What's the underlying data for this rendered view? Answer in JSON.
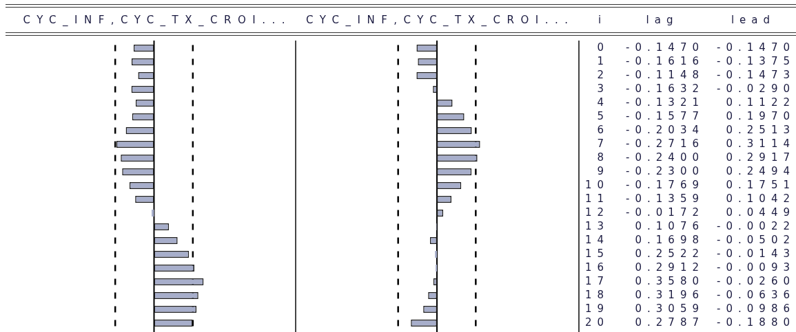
{
  "chart_data": [
    {
      "type": "bar",
      "orientation": "horizontal",
      "title": "CYC_INF,CYC_TX_CROI...",
      "categories": [
        "0",
        "1",
        "2",
        "3",
        "4",
        "5",
        "6",
        "7",
        "8",
        "9",
        "10",
        "11",
        "12",
        "13",
        "14",
        "15",
        "16",
        "17",
        "18",
        "19",
        "20"
      ],
      "values": [
        -0.147,
        -0.1616,
        -0.1148,
        -0.1632,
        -0.1321,
        -0.1577,
        -0.2034,
        -0.2716,
        -0.24,
        -0.23,
        -0.1769,
        -0.1359,
        -0.0172,
        0.1076,
        0.1698,
        0.2522,
        0.2912,
        0.358,
        0.3196,
        0.3059,
        0.2787
      ],
      "value_labels": [
        "-0.1470",
        "-0.1616",
        "-0.1148",
        "-0.1632",
        "-0.1321",
        "-0.1577",
        "-0.2034",
        "-0.2716",
        "-0.2400",
        "-0.2300",
        "-0.1769",
        "-0.1359",
        "-0.0172",
        "0.1076",
        "0.1698",
        "0.2522",
        "0.2912",
        "0.3580",
        "0.3196",
        "0.3059",
        "0.2787"
      ],
      "color": "#a7aecb",
      "ref_lines": [
        {
          "axis": "x",
          "value": -0.28,
          "line_style": "dashed",
          "color": "#000000"
        },
        {
          "axis": "x",
          "value": 0.28,
          "line_style": "dashed",
          "color": "#000000"
        }
      ],
      "annotations": [
        "lag"
      ],
      "tick_labels": false
    },
    {
      "type": "bar",
      "orientation": "horizontal",
      "title": "CYC_INF,CYC_TX_CROI...",
      "ylabel": "i",
      "categories": [
        "0",
        "1",
        "2",
        "3",
        "4",
        "5",
        "6",
        "7",
        "8",
        "9",
        "10",
        "11",
        "12",
        "13",
        "14",
        "15",
        "16",
        "17",
        "18",
        "19",
        "20"
      ],
      "values": [
        -0.147,
        -0.1375,
        -0.1473,
        -0.029,
        0.1122,
        0.197,
        0.2513,
        0.3114,
        0.2917,
        0.2494,
        0.1751,
        0.1042,
        0.0449,
        -0.0022,
        -0.0502,
        -0.0143,
        -0.0093,
        -0.026,
        -0.0636,
        -0.0986,
        -0.188
      ],
      "value_labels": [
        "-0.1470",
        "-0.1375",
        "-0.1473",
        "-0.0290",
        "0.1122",
        "0.1970",
        "0.2513",
        "0.3114",
        "0.2917",
        "0.2494",
        "0.1751",
        "0.1042",
        "0.0449",
        "-0.0022",
        "-0.0502",
        "-0.0143",
        "-0.0093",
        "-0.0260",
        "-0.0636",
        "-0.0986",
        "-0.1880"
      ],
      "color": "#a7aecb",
      "ref_lines": [
        {
          "axis": "x",
          "value": -0.28,
          "line_style": "dashed",
          "color": "#000000"
        },
        {
          "axis": "x",
          "value": 0.28,
          "line_style": "dashed",
          "color": "#000000"
        }
      ],
      "annotations": [
        "lead"
      ],
      "tick_labels": "y"
    }
  ]
}
